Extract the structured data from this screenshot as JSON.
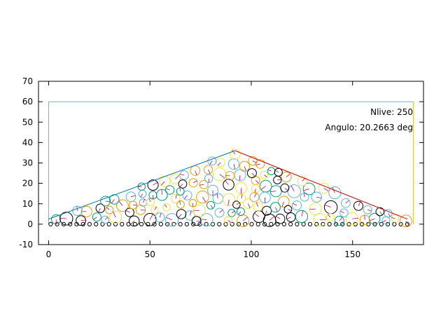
{
  "chart_data": {
    "type": "scatter",
    "title": "",
    "xlabel": "",
    "ylabel": "",
    "xlim": [
      -5,
      185
    ],
    "ylim": [
      -10,
      70
    ],
    "xticks": [
      0,
      50,
      100,
      150
    ],
    "yticks": [
      -10,
      0,
      10,
      20,
      30,
      40,
      50,
      60,
      70
    ],
    "grid": false,
    "annotations": [
      {
        "id": "nlive",
        "text": "Nlive: 250"
      },
      {
        "id": "angulo",
        "text": "Angulo: 20.2663 deg"
      }
    ],
    "container": {
      "outline": [
        [
          0,
          0
        ],
        [
          0,
          60
        ],
        [
          180,
          60
        ],
        [
          180,
          0
        ]
      ],
      "left_wall_color": "#e8a000",
      "top_color": "#56b4e9",
      "right_wall_color": "#e8c040"
    },
    "fit_lines": [
      {
        "name": "left-slope",
        "color": "#0072b2",
        "points": [
          [
            0,
            2.5
          ],
          [
            92,
            36
          ]
        ]
      },
      {
        "name": "right-slope",
        "color": "#d00000",
        "points": [
          [
            92,
            36
          ],
          [
            177,
            2.5
          ]
        ]
      }
    ],
    "particle_colors": [
      "#e69f00",
      "#56b4e9",
      "#009e73",
      "#000000",
      "#f0e442"
    ],
    "particle_count": 250,
    "pile": {
      "x0": 0,
      "x1": 180,
      "peak_x": 92,
      "peak_y": 36
    }
  }
}
